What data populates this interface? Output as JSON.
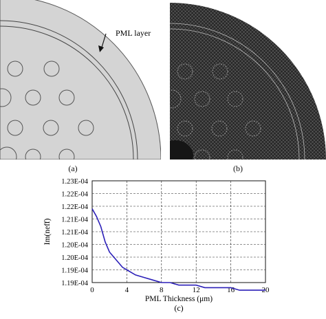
{
  "figure": {
    "panel_a": {
      "caption": "(a)",
      "annotation": "PML layer"
    },
    "panel_b": {
      "caption": "(b)"
    },
    "panel_c": {
      "caption": "(c)"
    }
  },
  "colors": {
    "cladding": "#d4d4d4",
    "mesh": "#3c3c3c",
    "line": "#2b1fb8"
  },
  "chart_data": {
    "type": "line",
    "xlabel": "PML Thickness (μm)",
    "ylabel": "Im(neff)",
    "xlim": [
      0,
      20
    ],
    "ylim": [
      0.000119,
      0.000123
    ],
    "x_ticks": [
      "0",
      "4",
      "8",
      "12",
      "16",
      "20"
    ],
    "y_ticks": [
      "1.23E-04",
      "1.22E-04",
      "1.22E-04",
      "1.21E-04",
      "1.21E-04",
      "1.20E-04",
      "1.20E-04",
      "1.19E-04",
      "1.19E-04"
    ],
    "grid": true,
    "series": [
      {
        "x": [
          0,
          0.5,
          1,
          1.5,
          2,
          2.5,
          3,
          3.5,
          4,
          5,
          6,
          7,
          8,
          9,
          10,
          11,
          12,
          13,
          14,
          15,
          16,
          17,
          18,
          19,
          20
        ],
        "values": [
          0.0001219,
          0.0001216,
          0.0001212,
          0.0001206,
          0.0001202,
          0.00012,
          0.0001198,
          0.0001196,
          0.0001195,
          0.0001193,
          0.0001192,
          0.0001191,
          0.000119,
          0.000119,
          0.0001189,
          0.0001189,
          0.0001189,
          0.0001188,
          0.0001188,
          0.0001188,
          0.0001188,
          0.0001187,
          0.0001187,
          0.0001187,
          0.0001187
        ]
      }
    ]
  }
}
